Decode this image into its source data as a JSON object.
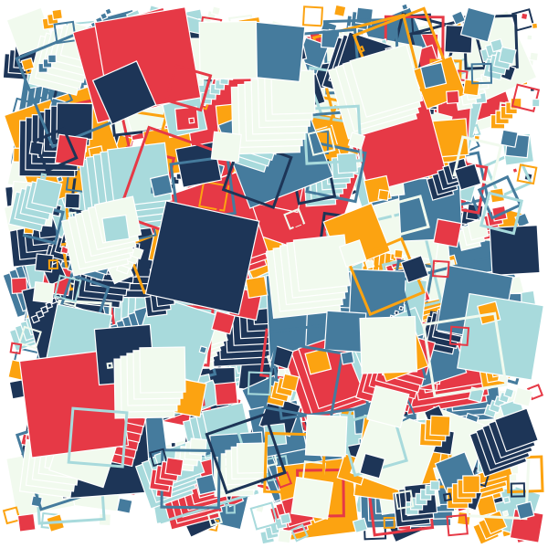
{
  "artwork": {
    "background": "#ffffff",
    "palette": {
      "navy": "#1d3557",
      "steel_blue": "#457b9d",
      "light_teal": "#a8dadc",
      "off_white": "#f1faee",
      "red": "#e63946",
      "orange": "#fca311"
    }
  }
}
